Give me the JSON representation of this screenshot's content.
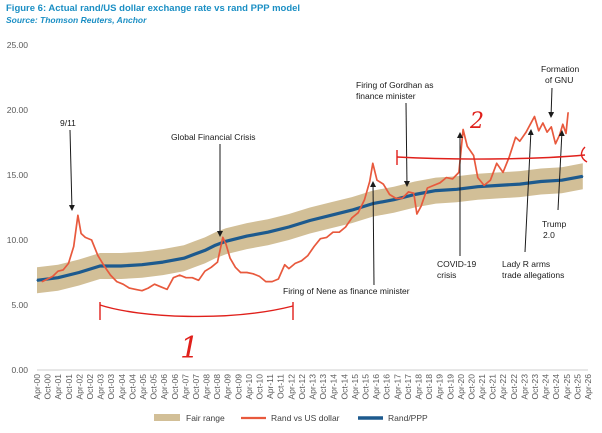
{
  "figure": {
    "title": "Figure 6: Actual rand/US dollar exchange rate vs rand PPP model",
    "source": "Source: Thomson Reuters, Anchor"
  },
  "chart_data": {
    "type": "line",
    "ylim": [
      0,
      25
    ],
    "y_ticks": [
      "0.00",
      "5.00",
      "10.00",
      "15.00",
      "20.00",
      "25.00"
    ],
    "x_tick_labels": [
      "Apr-00",
      "Oct-00",
      "Apr-01",
      "Oct-01",
      "Apr-02",
      "Oct-02",
      "Apr-03",
      "Oct-03",
      "Apr-04",
      "Oct-04",
      "Apr-05",
      "Oct-05",
      "Apr-06",
      "Oct-06",
      "Apr-07",
      "Oct-07",
      "Apr-08",
      "Oct-08",
      "Apr-09",
      "Oct-09",
      "Apr-10",
      "Oct-10",
      "Apr-11",
      "Oct-11",
      "Apr-12",
      "Oct-12",
      "Apr-13",
      "Oct-13",
      "Apr-14",
      "Oct-14",
      "Apr-15",
      "Oct-15",
      "Apr-16",
      "Oct-16",
      "Apr-17",
      "Oct-17",
      "Apr-18",
      "Oct-18",
      "Apr-19",
      "Oct-19",
      "Apr-20",
      "Oct-20",
      "Apr-21",
      "Oct-21",
      "Apr-22",
      "Oct-22",
      "Apr-23",
      "Oct-23",
      "Apr-24",
      "Oct-24",
      "Apr-25",
      "Oct-25",
      "Apr-26"
    ],
    "grid": false,
    "legend_position": "bottom",
    "colors": {
      "fair_range": "#d2bf97",
      "rand_usd": "#e8593d",
      "rand_ppp": "#1d5a8e",
      "annotation_red": "#e0201b"
    },
    "series": [
      {
        "name": "Rand vs US dollar",
        "x": [
          2000.25,
          2000.75,
          2001.0,
          2001.25,
          2001.5,
          2001.75,
          2001.95,
          2002.1,
          2002.3,
          2002.6,
          2002.9,
          2003.2,
          2003.5,
          2003.8,
          2004.1,
          2004.4,
          2004.7,
          2005.0,
          2005.3,
          2005.6,
          2005.9,
          2006.2,
          2006.5,
          2006.8,
          2007.1,
          2007.4,
          2007.7,
          2008.0,
          2008.3,
          2008.6,
          2008.85,
          2009.0,
          2009.2,
          2009.45,
          2009.7,
          2010.0,
          2010.3,
          2010.6,
          2010.9,
          2011.2,
          2011.5,
          2011.8,
          2012.0,
          2012.3,
          2012.6,
          2012.9,
          2013.2,
          2013.5,
          2013.8,
          2014.1,
          2014.4,
          2014.7,
          2015.0,
          2015.3,
          2015.6,
          2015.85,
          2016.0,
          2016.2,
          2016.5,
          2016.8,
          2017.1,
          2017.4,
          2017.7,
          2017.95,
          2018.1,
          2018.3,
          2018.6,
          2018.9,
          2019.2,
          2019.5,
          2019.8,
          2020.1,
          2020.3,
          2020.5,
          2020.8,
          2021.0,
          2021.3,
          2021.6,
          2021.9,
          2022.2,
          2022.5,
          2022.8,
          2023.0,
          2023.3,
          2023.5,
          2023.7,
          2023.9,
          2024.1,
          2024.3,
          2024.5,
          2024.7,
          2024.9,
          2025.05,
          2025.2,
          2025.3
        ],
        "values": [
          6.8,
          7.2,
          7.6,
          7.7,
          8.2,
          9.5,
          11.9,
          10.5,
          10.2,
          10.0,
          8.8,
          8.0,
          7.3,
          6.8,
          6.6,
          6.3,
          6.2,
          6.1,
          6.3,
          6.6,
          6.4,
          6.2,
          7.1,
          7.3,
          7.1,
          7.1,
          6.9,
          7.6,
          7.9,
          8.3,
          10.2,
          9.7,
          8.6,
          7.9,
          7.5,
          7.5,
          7.4,
          7.2,
          6.8,
          6.8,
          7.0,
          8.1,
          7.8,
          8.2,
          8.4,
          8.8,
          9.5,
          10.1,
          10.2,
          10.6,
          10.6,
          11.0,
          11.7,
          12.1,
          13.1,
          14.5,
          15.9,
          14.6,
          14.3,
          13.5,
          13.2,
          13.2,
          13.7,
          13.6,
          12.0,
          12.6,
          14.0,
          14.2,
          14.4,
          14.8,
          14.7,
          15.2,
          18.5,
          17.2,
          16.5,
          14.8,
          14.2,
          14.6,
          15.9,
          15.2,
          16.4,
          17.9,
          17.6,
          18.3,
          18.9,
          19.5,
          18.4,
          19.0,
          18.3,
          18.7,
          17.4,
          18.1,
          18.9,
          18.2,
          19.8
        ]
      },
      {
        "name": "Rand/PPP",
        "x": [
          2000.0,
          2001.0,
          2002.0,
          2003.0,
          2004.0,
          2005.0,
          2006.0,
          2007.0,
          2007.5,
          2008.0,
          2008.5,
          2009.0,
          2010.0,
          2011.0,
          2012.0,
          2013.0,
          2014.0,
          2015.0,
          2016.0,
          2017.0,
          2018.0,
          2019.0,
          2020.0,
          2021.0,
          2022.0,
          2023.0,
          2024.0,
          2025.0,
          2026.0
        ],
        "values": [
          6.9,
          7.1,
          7.5,
          8.0,
          8.0,
          8.1,
          8.3,
          8.6,
          8.9,
          9.2,
          9.6,
          9.9,
          10.3,
          10.6,
          11.0,
          11.5,
          11.9,
          12.3,
          12.8,
          13.1,
          13.5,
          13.8,
          13.9,
          14.1,
          14.2,
          14.3,
          14.5,
          14.6,
          14.9
        ]
      },
      {
        "name": "Fair range",
        "x": [
          2000.0,
          2001.0,
          2002.0,
          2003.0,
          2004.0,
          2005.0,
          2006.0,
          2007.0,
          2007.5,
          2008.0,
          2008.5,
          2009.0,
          2010.0,
          2011.0,
          2012.0,
          2013.0,
          2014.0,
          2015.0,
          2016.0,
          2017.0,
          2018.0,
          2019.0,
          2020.0,
          2021.0,
          2022.0,
          2023.0,
          2024.0,
          2025.0,
          2026.0
        ],
        "lower": [
          5.9,
          6.1,
          6.5,
          7.0,
          7.0,
          7.1,
          7.3,
          7.6,
          7.9,
          8.2,
          8.6,
          8.9,
          9.3,
          9.6,
          10.0,
          10.5,
          10.9,
          11.3,
          11.8,
          12.1,
          12.5,
          12.8,
          12.9,
          13.1,
          13.2,
          13.3,
          13.5,
          13.6,
          13.9
        ],
        "upper": [
          7.9,
          8.1,
          8.5,
          9.0,
          9.0,
          9.1,
          9.3,
          9.6,
          9.9,
          10.2,
          10.6,
          10.9,
          11.3,
          11.6,
          12.0,
          12.5,
          12.9,
          13.3,
          13.8,
          14.1,
          14.5,
          14.8,
          14.9,
          15.1,
          15.2,
          15.3,
          15.5,
          15.6,
          15.9
        ]
      }
    ],
    "annotations": [
      {
        "text": "9/11"
      },
      {
        "text": "Global Financial Crisis"
      },
      {
        "text": "Firing of Nene as finance minister"
      },
      {
        "text": "Firing of Gordhan as"
      },
      {
        "text": "finance minister"
      },
      {
        "text": "COVID-19"
      },
      {
        "text": "crisis"
      },
      {
        "text": "Formation"
      },
      {
        "text": "of GNU"
      },
      {
        "text": "Trump"
      },
      {
        "text": "2.0"
      },
      {
        "text": "Lady R arms"
      },
      {
        "text": "trade allegations"
      }
    ],
    "handwritten_marks": [
      "1",
      "2"
    ]
  },
  "legend": [
    {
      "label": "Fair range"
    },
    {
      "label": "Rand vs US dollar"
    },
    {
      "label": "Rand/PPP"
    }
  ]
}
